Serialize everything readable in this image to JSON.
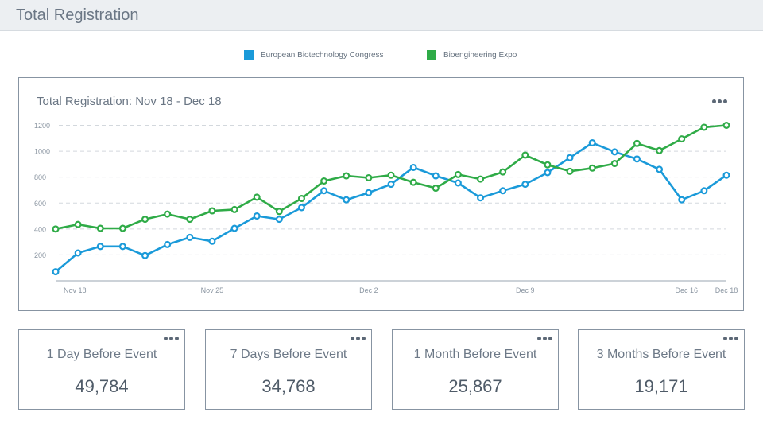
{
  "header": {
    "title": "Total Registration"
  },
  "colors": {
    "series_blue": "#1a9ad9",
    "series_green": "#2fab47",
    "border": "#8794a2"
  },
  "legend": [
    {
      "label": "European Biotechnology Congress",
      "color": "#1a9ad9"
    },
    {
      "label": "Bioengineering Expo",
      "color": "#2fab47"
    }
  ],
  "chart": {
    "title": "Total Registration: Nov 18 - Dec 18",
    "menu_icon": "more-horizontal-icon"
  },
  "chart_data": {
    "type": "line",
    "title": "Total Registration: Nov 18 - Dec 18",
    "x": [
      "Nov 18",
      "Nov 19",
      "Nov 20",
      "Nov 21",
      "Nov 22",
      "Nov 23",
      "Nov 24",
      "Nov 25",
      "Nov 26",
      "Nov 27",
      "Nov 28",
      "Nov 29",
      "Nov 30",
      "Dec 1",
      "Dec 2",
      "Dec 3",
      "Dec 4",
      "Dec 5",
      "Dec 6",
      "Dec 7",
      "Dec 8",
      "Dec 9",
      "Dec 10",
      "Dec 11",
      "Dec 12",
      "Dec 13",
      "Dec 14",
      "Dec 15",
      "Dec 16",
      "Dec 17",
      "Dec 18"
    ],
    "x_tick_labels": [
      "Nov 18",
      "Nov 25",
      "Dec 2",
      "Dec 9",
      "Dec 16",
      "Dec 18"
    ],
    "ylim": [
      0,
      1200
    ],
    "y_ticks": [
      200,
      400,
      600,
      800,
      1000,
      1200
    ],
    "grid": true,
    "legend": "top-center",
    "series": [
      {
        "name": "European Biotechnology Congress",
        "color": "#1a9ad9",
        "values": [
          70,
          215,
          265,
          265,
          195,
          280,
          335,
          305,
          405,
          500,
          475,
          565,
          695,
          625,
          680,
          745,
          875,
          810,
          755,
          640,
          695,
          745,
          835,
          950,
          1065,
          995,
          940,
          860,
          625,
          695,
          815
        ]
      },
      {
        "name": "Bioengineering Expo",
        "color": "#2fab47",
        "values": [
          400,
          435,
          405,
          405,
          475,
          515,
          475,
          540,
          550,
          645,
          535,
          635,
          770,
          810,
          795,
          815,
          760,
          715,
          820,
          785,
          840,
          970,
          895,
          845,
          870,
          905,
          1060,
          1005,
          1095,
          1185,
          1200
        ]
      }
    ]
  },
  "stats": [
    {
      "label": "1 Day Before Event",
      "value": "49,784"
    },
    {
      "label": "7 Days Before Event",
      "value": "34,768"
    },
    {
      "label": "1 Month Before Event",
      "value": "25,867"
    },
    {
      "label": "3 Months Before Event",
      "value": "19,171"
    }
  ]
}
